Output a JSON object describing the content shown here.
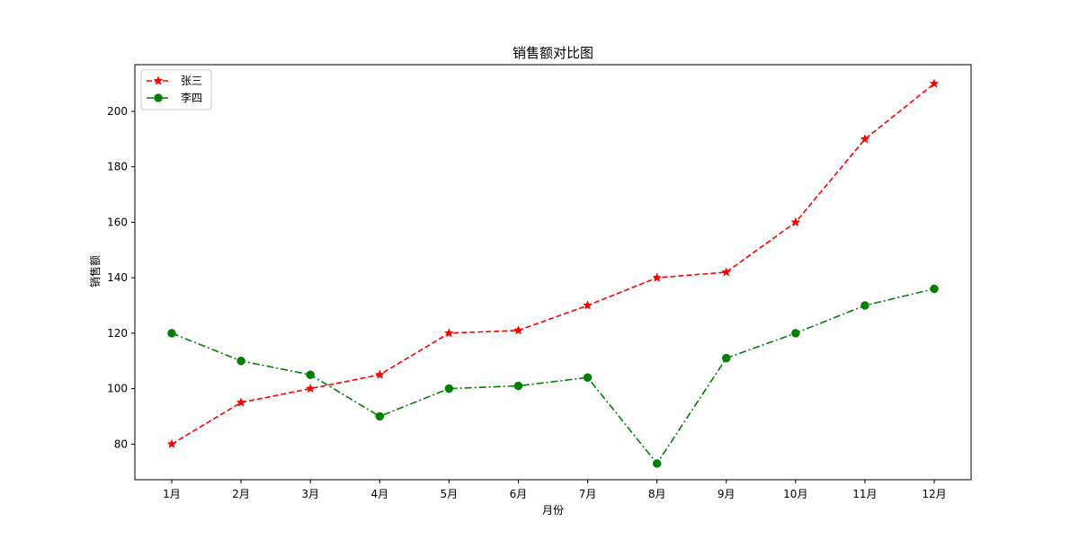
{
  "chart_data": {
    "type": "line",
    "title": "销售额对比图",
    "xlabel": "月份",
    "ylabel": "销售额",
    "categories": [
      "1月",
      "2月",
      "3月",
      "4月",
      "5月",
      "6月",
      "7月",
      "8月",
      "9月",
      "10月",
      "11月",
      "12月"
    ],
    "ylim": [
      67.15,
      216.85
    ],
    "yticks": [
      80,
      100,
      120,
      140,
      160,
      180,
      200
    ],
    "grid": false,
    "legend_position": "top-left",
    "series": [
      {
        "name": "张三",
        "values": [
          80,
          95,
          100,
          105,
          120,
          121,
          130,
          140,
          142,
          160,
          190,
          210
        ],
        "color": "#ff0000",
        "line_style": "dashed",
        "marker": "star"
      },
      {
        "name": "李四",
        "values": [
          120,
          110,
          105,
          90,
          100,
          101,
          104,
          73,
          111,
          120,
          130,
          136
        ],
        "color": "#008000",
        "line_style": "dash-dot",
        "marker": "circle"
      }
    ]
  }
}
